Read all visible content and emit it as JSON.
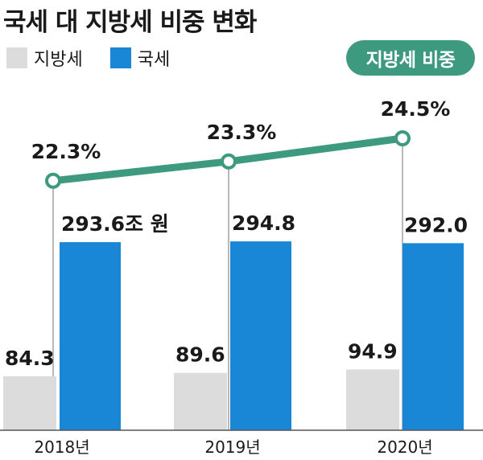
{
  "colors": {
    "local_tax": "#dcdcdc",
    "national_tax": "#1a87d6",
    "ratio_line": "#3e9a7f",
    "ratio_badge": "#3e9a7f"
  },
  "chart_data": {
    "type": "bar",
    "title": "국세 대 지방세 비중 변화",
    "categories": [
      "2018년",
      "2019년",
      "2020년"
    ],
    "series": [
      {
        "name": "지방세",
        "values": [
          84.3,
          89.6,
          94.9
        ],
        "labels": [
          "84.3",
          "89.6",
          "94.9"
        ]
      },
      {
        "name": "국세",
        "values": [
          293.6,
          294.8,
          292.0
        ],
        "labels": [
          "293.6조 원",
          "294.8",
          "292.0"
        ]
      }
    ],
    "unit": "조 원",
    "ylim": [
      0,
      300
    ],
    "ratio_series": {
      "name": "지방세 비중",
      "type": "line",
      "values": [
        22.3,
        23.3,
        24.5
      ],
      "labels": [
        "22.3%",
        "23.3%",
        "24.5%"
      ]
    },
    "legend": {
      "position": "top-left",
      "items": [
        "지방세",
        "국세"
      ]
    },
    "grid": false
  }
}
